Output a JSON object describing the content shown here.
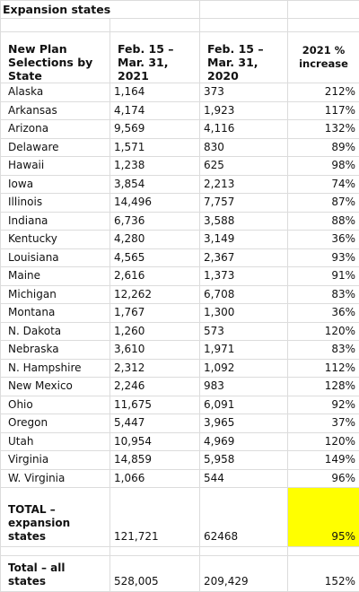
{
  "title": "Expansion states",
  "table": {
    "header": [
      "New Plan Selections by State",
      "Feb. 15 – Mar. 31, 2021",
      "Feb. 15 – Mar. 31, 2020",
      "2021 % increase"
    ],
    "rows": [
      [
        "Alaska",
        "1,164",
        "373",
        "212%"
      ],
      [
        "Arkansas",
        "4,174",
        "1,923",
        "117%"
      ],
      [
        "Arizona",
        "9,569",
        "4,116",
        "132%"
      ],
      [
        "Delaware",
        "1,571",
        "830",
        "89%"
      ],
      [
        "Hawaii",
        "1,238",
        "625",
        "98%"
      ],
      [
        "Iowa",
        "3,854",
        "2,213",
        "74%"
      ],
      [
        "Illinois",
        "14,496",
        "7,757",
        "87%"
      ],
      [
        "Indiana",
        "6,736",
        "3,588",
        "88%"
      ],
      [
        "Kentucky",
        "4,280",
        "3,149",
        "36%"
      ],
      [
        "Louisiana",
        "4,565",
        "2,367",
        "93%"
      ],
      [
        "Maine",
        "2,616",
        "1,373",
        "91%"
      ],
      [
        "Michigan",
        "12,262",
        "6,708",
        "83%"
      ],
      [
        "Montana",
        "1,767",
        "1,300",
        "36%"
      ],
      [
        "N. Dakota",
        "1,260",
        "573",
        "120%"
      ],
      [
        "Nebraska",
        "3,610",
        "1,971",
        "83%"
      ],
      [
        "N. Hampshire",
        "2,312",
        "1,092",
        "112%"
      ],
      [
        "New Mexico",
        "2,246",
        "983",
        "128%"
      ],
      [
        "Ohio",
        "11,675",
        "6,091",
        "92%"
      ],
      [
        "Oregon",
        "5,447",
        "3,965",
        "37%"
      ],
      [
        "Utah",
        "10,954",
        "4,969",
        "120%"
      ],
      [
        "Virginia",
        "14,859",
        "5,958",
        "149%"
      ],
      [
        "W. Virginia",
        "1,066",
        "544",
        "96%"
      ]
    ],
    "total_expansion": [
      "TOTAL – expansion states",
      "121,721",
      "62468",
      "95%"
    ],
    "total_all": [
      "Total – all states",
      "528,005",
      "209,429",
      "152%"
    ]
  }
}
